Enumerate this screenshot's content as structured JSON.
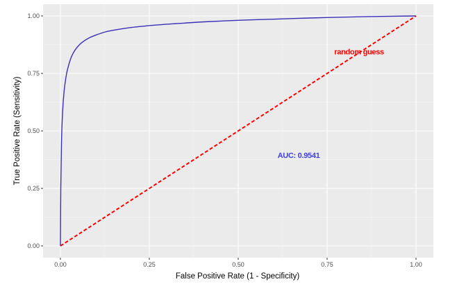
{
  "chart_data": {
    "type": "line",
    "title": "",
    "xlabel": "False Positive Rate (1 - Specificity)",
    "ylabel": "True Positive Rate (Sensitivity)",
    "xlim": [
      0,
      1
    ],
    "ylim": [
      0,
      1
    ],
    "x_ticks": [
      "0.00",
      "0.25",
      "0.50",
      "0.75",
      "1.00"
    ],
    "y_ticks": [
      "0.00",
      "0.25",
      "0.50",
      "0.75",
      "1.00"
    ],
    "grid": true,
    "legend": "none",
    "series": [
      {
        "style": "solid",
        "color": "#3b2db8",
        "x": [
          0,
          0.001,
          0.003,
          0.006,
          0.01,
          0.015,
          0.02,
          0.03,
          0.04,
          0.05,
          0.06,
          0.08,
          0.1,
          0.125,
          0.15,
          0.2,
          0.25,
          0.3,
          0.35,
          0.4,
          0.5,
          0.6,
          0.7,
          0.8,
          0.9,
          1.0
        ],
        "y": [
          0,
          0.25,
          0.45,
          0.58,
          0.667,
          0.728,
          0.768,
          0.819,
          0.849,
          0.869,
          0.884,
          0.904,
          0.917,
          0.93,
          0.938,
          0.95,
          0.958,
          0.964,
          0.969,
          0.974,
          0.981,
          0.986,
          0.991,
          0.995,
          0.998,
          1.0
        ]
      },
      {
        "style": "dashed",
        "color": "#ff0000",
        "x": [
          0,
          1
        ],
        "y": [
          0,
          1
        ]
      }
    ],
    "annotations": [
      {
        "text": "random guess",
        "x": 0.84,
        "y": 0.845,
        "color": "#ff0000"
      },
      {
        "text": "AUC: 0.9541",
        "x": 0.67,
        "y": 0.395,
        "color": "#3f3fe6"
      }
    ]
  }
}
